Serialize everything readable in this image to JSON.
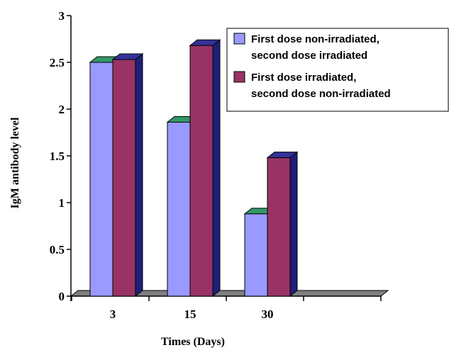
{
  "chart_data": {
    "type": "bar",
    "categories": [
      "3",
      "15",
      "30"
    ],
    "extra_empty_category": true,
    "series": [
      {
        "name": "First dose non-irradiated, second dose irradiated",
        "legend_lines": [
          "First dose non-irradiated,",
          "second dose irradiated"
        ],
        "values": [
          2.5,
          1.86,
          0.88
        ],
        "color": "#9999FF",
        "top_color": "#339966",
        "side_color": "#7777CC"
      },
      {
        "name": "First dose irradiated, second dose non-irradiated",
        "legend_lines": [
          "First dose irradiated,",
          "second dose non-irradiated"
        ],
        "values": [
          2.53,
          2.68,
          1.48
        ],
        "color": "#993366",
        "top_color": "#333399",
        "side_color": "#1F1F7A"
      }
    ],
    "xlabel": "Times (Days)",
    "ylabel": "IgM antibody level",
    "ylim": [
      0,
      3
    ],
    "yticks": [
      "0",
      "0.5",
      "1",
      "1.5",
      "2",
      "2.5",
      "3"
    ],
    "grid": false,
    "legend_position": "top-right",
    "floor_color": "#808080"
  }
}
